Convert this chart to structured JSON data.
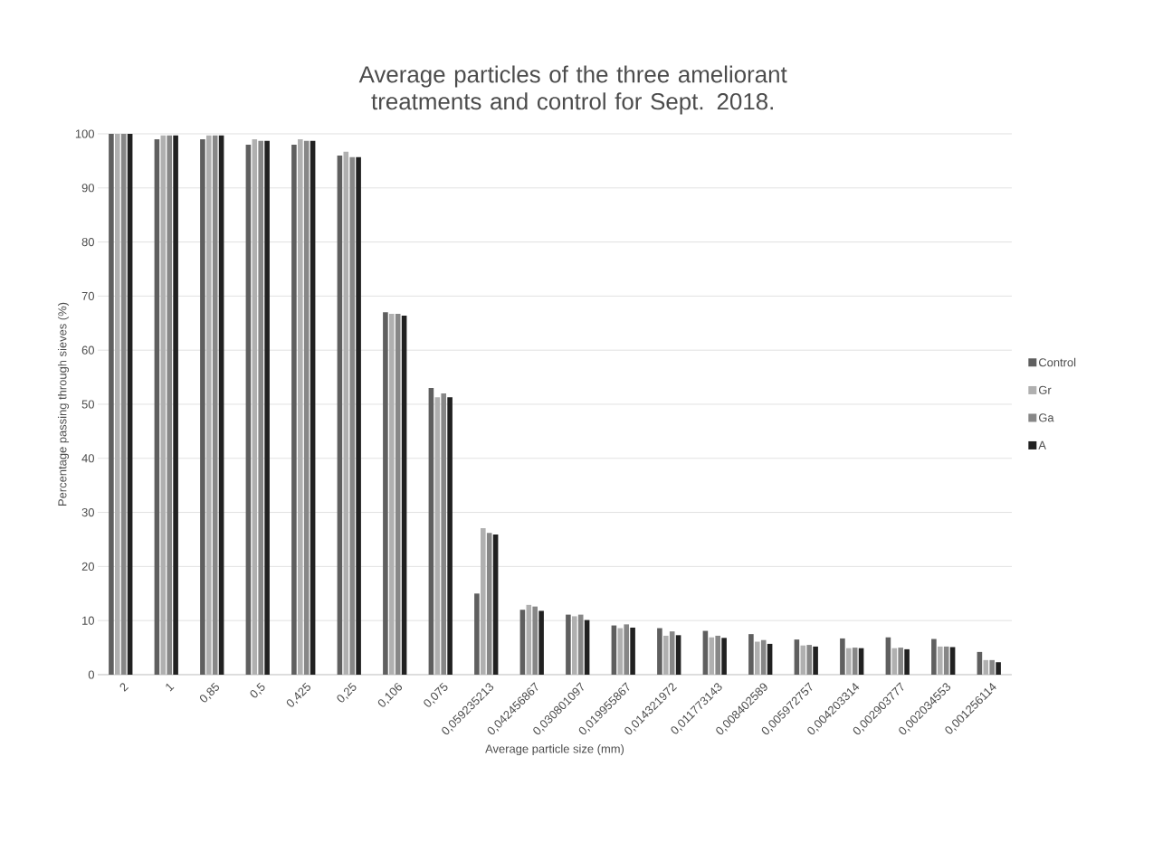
{
  "chart_data": {
    "type": "bar",
    "title": "Average particles of the three ameliorant treatments and control for Sept. 2018.",
    "xlabel": "Average particle size (mm)",
    "ylabel": "Percentage passing through sieves (%)",
    "categories": [
      "2",
      "1",
      "0,85",
      "0,5",
      "0,425",
      "0,25",
      "0,106",
      "0,075",
      "0,059235213",
      "0,042456867",
      "0,030801097",
      "0,019955867",
      "0,014321972",
      "0,011773143",
      "0,008402589",
      "0,005972757",
      "0,004203314",
      "0,002903777",
      "0,002034553",
      "0,001256114"
    ],
    "series": [
      {
        "name": "Control",
        "color": "#5f5f5f",
        "values": [
          100,
          99,
          99,
          98,
          98,
          96,
          67,
          53,
          15,
          12.0,
          11.1,
          9.1,
          8.6,
          8.1,
          7.5,
          6.5,
          6.7,
          6.9,
          6.6,
          4.2
        ]
      },
      {
        "name": "Gr",
        "color": "#b0b0b0",
        "values": [
          100,
          99.7,
          99.7,
          99,
          99,
          96.7,
          66.7,
          51.3,
          27.1,
          12.9,
          10.8,
          8.6,
          7.2,
          6.9,
          6.1,
          5.4,
          4.9,
          4.9,
          5.2,
          2.7
        ]
      },
      {
        "name": "Ga",
        "color": "#878787",
        "values": [
          100,
          99.7,
          99.7,
          98.7,
          98.7,
          95.7,
          66.7,
          52,
          26.2,
          12.6,
          11.1,
          9.3,
          8.0,
          7.2,
          6.4,
          5.5,
          5.0,
          5.0,
          5.2,
          2.7
        ]
      },
      {
        "name": "A",
        "color": "#212121",
        "values": [
          100,
          99.7,
          99.7,
          98.7,
          98.7,
          95.7,
          66.4,
          51.3,
          25.9,
          11.8,
          10.1,
          8.7,
          7.3,
          6.8,
          5.7,
          5.2,
          4.9,
          4.7,
          5.1,
          2.3
        ]
      }
    ],
    "ylim": [
      0,
      100
    ],
    "yticks": [
      0,
      10,
      20,
      30,
      40,
      50,
      60,
      70,
      80,
      90,
      100
    ],
    "grid": "y",
    "legend": "right"
  }
}
